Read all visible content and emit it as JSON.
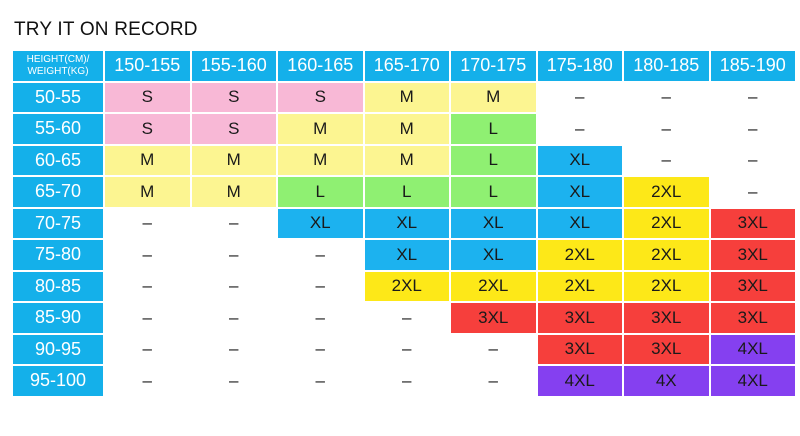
{
  "title": "TRY IT ON RECORD",
  "corner_label_line1": "HEIGHT(CM)/",
  "corner_label_line2": "WEIGHT(KG)",
  "height_ranges": [
    "150-155",
    "155-160",
    "160-165",
    "165-170",
    "170-175",
    "175-180",
    "180-185",
    "185-190"
  ],
  "rows": [
    {
      "weight": "50-55",
      "sizes": [
        "S",
        "S",
        "S",
        "M",
        "M",
        "–",
        "–",
        "–"
      ]
    },
    {
      "weight": "55-60",
      "sizes": [
        "S",
        "S",
        "M",
        "M",
        "L",
        "–",
        "–",
        "–"
      ]
    },
    {
      "weight": "60-65",
      "sizes": [
        "M",
        "M",
        "M",
        "M",
        "L",
        "XL",
        "–",
        "–"
      ]
    },
    {
      "weight": "65-70",
      "sizes": [
        "M",
        "M",
        "L",
        "L",
        "L",
        "XL",
        "2XL",
        "–"
      ]
    },
    {
      "weight": "70-75",
      "sizes": [
        "–",
        "–",
        "XL",
        "XL",
        "XL",
        "XL",
        "2XL",
        "3XL"
      ]
    },
    {
      "weight": "75-80",
      "sizes": [
        "–",
        "–",
        "–",
        "XL",
        "XL",
        "2XL",
        "2XL",
        "3XL"
      ]
    },
    {
      "weight": "80-85",
      "sizes": [
        "–",
        "–",
        "–",
        "2XL",
        "2XL",
        "2XL",
        "2XL",
        "3XL"
      ]
    },
    {
      "weight": "85-90",
      "sizes": [
        "–",
        "–",
        "–",
        "–",
        "3XL",
        "3XL",
        "3XL",
        "3XL"
      ]
    },
    {
      "weight": "90-95",
      "sizes": [
        "–",
        "–",
        "–",
        "–",
        "–",
        "3XL",
        "3XL",
        "4XL"
      ]
    },
    {
      "weight": "95-100",
      "sizes": [
        "–",
        "–",
        "–",
        "–",
        "–",
        "4XL",
        "4X",
        "4XL"
      ]
    }
  ],
  "colors": {
    "header": "#14b0ea",
    "S": "#f8b8d6",
    "M": "#fcf591",
    "L": "#8ff072",
    "XL": "#1cb2ef",
    "2XL": "#fde818",
    "3XL": "#f63f3c",
    "4XL": "#8540f0"
  }
}
